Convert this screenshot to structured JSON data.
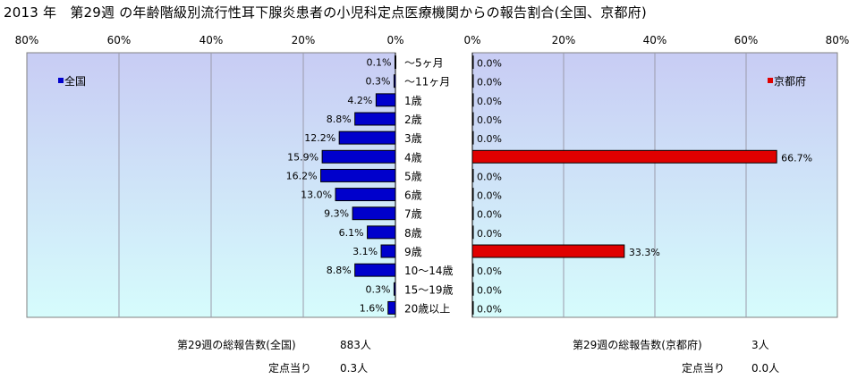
{
  "title": "2013 年　第29週 の年齢階級別流行性耳下腺炎患者の小児科定点医療機関からの報告割合(全国、京都府)",
  "colors": {
    "plot_bg_top": "#c8ccf4",
    "plot_bg_bottom": "#d6fcfc",
    "national_bar": "#0000cc",
    "kyoto_bar": "#e00000"
  },
  "chart_data": [
    {
      "type": "bar",
      "orientation": "horizontal",
      "direction": "reversed",
      "categories": [
        "～5ヶ月",
        "～11ヶ月",
        "1歳",
        "2歳",
        "3歳",
        "4歳",
        "5歳",
        "6歳",
        "7歳",
        "8歳",
        "9歳",
        "10～14歳",
        "15～19歳",
        "20歳以上"
      ],
      "series": [
        {
          "name": "全国",
          "values": [
            0.1,
            0.3,
            4.2,
            8.8,
            12.2,
            15.9,
            16.2,
            13.0,
            9.3,
            6.1,
            3.1,
            8.8,
            0.3,
            1.6
          ],
          "labels": [
            "0.1%",
            "0.3%",
            "4.2%",
            "8.8%",
            "12.2%",
            "15.9%",
            "16.2%",
            "13.0%",
            "9.3%",
            "6.1%",
            "3.1%",
            "8.8%",
            "0.3%",
            "1.6%"
          ]
        }
      ],
      "xlim": [
        0,
        80
      ],
      "xticks": [
        "80%",
        "60%",
        "40%",
        "20%",
        "0%"
      ],
      "grid": true,
      "legend": "top-left"
    },
    {
      "type": "bar",
      "orientation": "horizontal",
      "categories": [
        "～5ヶ月",
        "～11ヶ月",
        "1歳",
        "2歳",
        "3歳",
        "4歳",
        "5歳",
        "6歳",
        "7歳",
        "8歳",
        "9歳",
        "10～14歳",
        "15～19歳",
        "20歳以上"
      ],
      "series": [
        {
          "name": "京都府",
          "values": [
            0.0,
            0.0,
            0.0,
            0.0,
            0.0,
            66.7,
            0.0,
            0.0,
            0.0,
            0.0,
            33.3,
            0.0,
            0.0,
            0.0
          ],
          "labels": [
            "0.0%",
            "0.0%",
            "0.0%",
            "0.0%",
            "0.0%",
            "66.7%",
            "0.0%",
            "0.0%",
            "0.0%",
            "0.0%",
            "33.3%",
            "0.0%",
            "0.0%",
            "0.0%"
          ]
        }
      ],
      "xlim": [
        0,
        80
      ],
      "xticks": [
        "0%",
        "20%",
        "40%",
        "60%",
        "80%"
      ],
      "grid": true,
      "legend": "top-right"
    }
  ],
  "summary": {
    "national_total_label": "第29週の総報告数(全国)",
    "national_total_value": "883人",
    "national_per_label": "定点当り",
    "national_per_value": "0.3人",
    "kyoto_total_label": "第29週の総報告数(京都府)",
    "kyoto_total_value": "3人",
    "kyoto_per_label": "定点当り",
    "kyoto_per_value": "0.0人"
  }
}
